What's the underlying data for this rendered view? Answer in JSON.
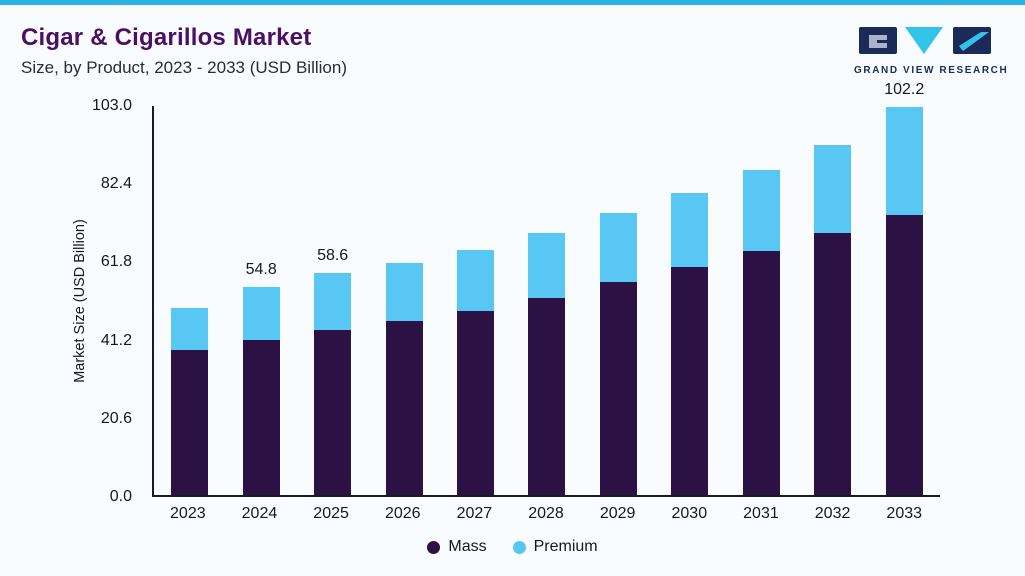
{
  "meta": {
    "top_bar_color": "#2bb3e6",
    "background": "#f9fcfe",
    "title_color": "#4b0f63",
    "axis_color": "#1a1a22"
  },
  "header": {
    "title": "Cigar & Cigarillos Market",
    "subtitle": "Size, by Product, 2023 - 2033 (USD Billion)"
  },
  "logo": {
    "text": "GRAND VIEW RESEARCH",
    "navy": "#1c2a5a",
    "cyan": "#31c3ea"
  },
  "chart_data": {
    "type": "bar",
    "stacked": true,
    "title": "Cigar & Cigarillos Market Size, by Product, 2023 - 2033 (USD Billion)",
    "categories": [
      "2023",
      "2024",
      "2025",
      "2026",
      "2027",
      "2028",
      "2029",
      "2030",
      "2031",
      "2032",
      "2033"
    ],
    "series": [
      {
        "name": "Mass",
        "color": "#2c1144",
        "values": [
          38.2,
          40.9,
          43.5,
          45.8,
          48.5,
          52.0,
          56.0,
          60.0,
          64.3,
          69.0,
          73.8
        ]
      },
      {
        "name": "Premium",
        "color": "#58c7f3",
        "values": [
          11.0,
          13.9,
          15.1,
          15.3,
          16.0,
          17.0,
          18.2,
          19.6,
          21.4,
          23.2,
          28.4
        ]
      }
    ],
    "totals": [
      49.2,
      54.8,
      58.6,
      61.1,
      64.5,
      69.0,
      74.2,
      79.6,
      85.7,
      92.2,
      102.2
    ],
    "total_labels": [
      null,
      "54.8",
      "58.6",
      null,
      null,
      null,
      null,
      null,
      null,
      null,
      "102.2"
    ],
    "xlabel": "",
    "ylabel": "Market Size (USD Billion)",
    "ylim": [
      0,
      103
    ],
    "yticks": [
      0.0,
      20.6,
      41.2,
      61.8,
      82.4,
      103.0
    ],
    "grid": false,
    "legend_position": "bottom"
  }
}
